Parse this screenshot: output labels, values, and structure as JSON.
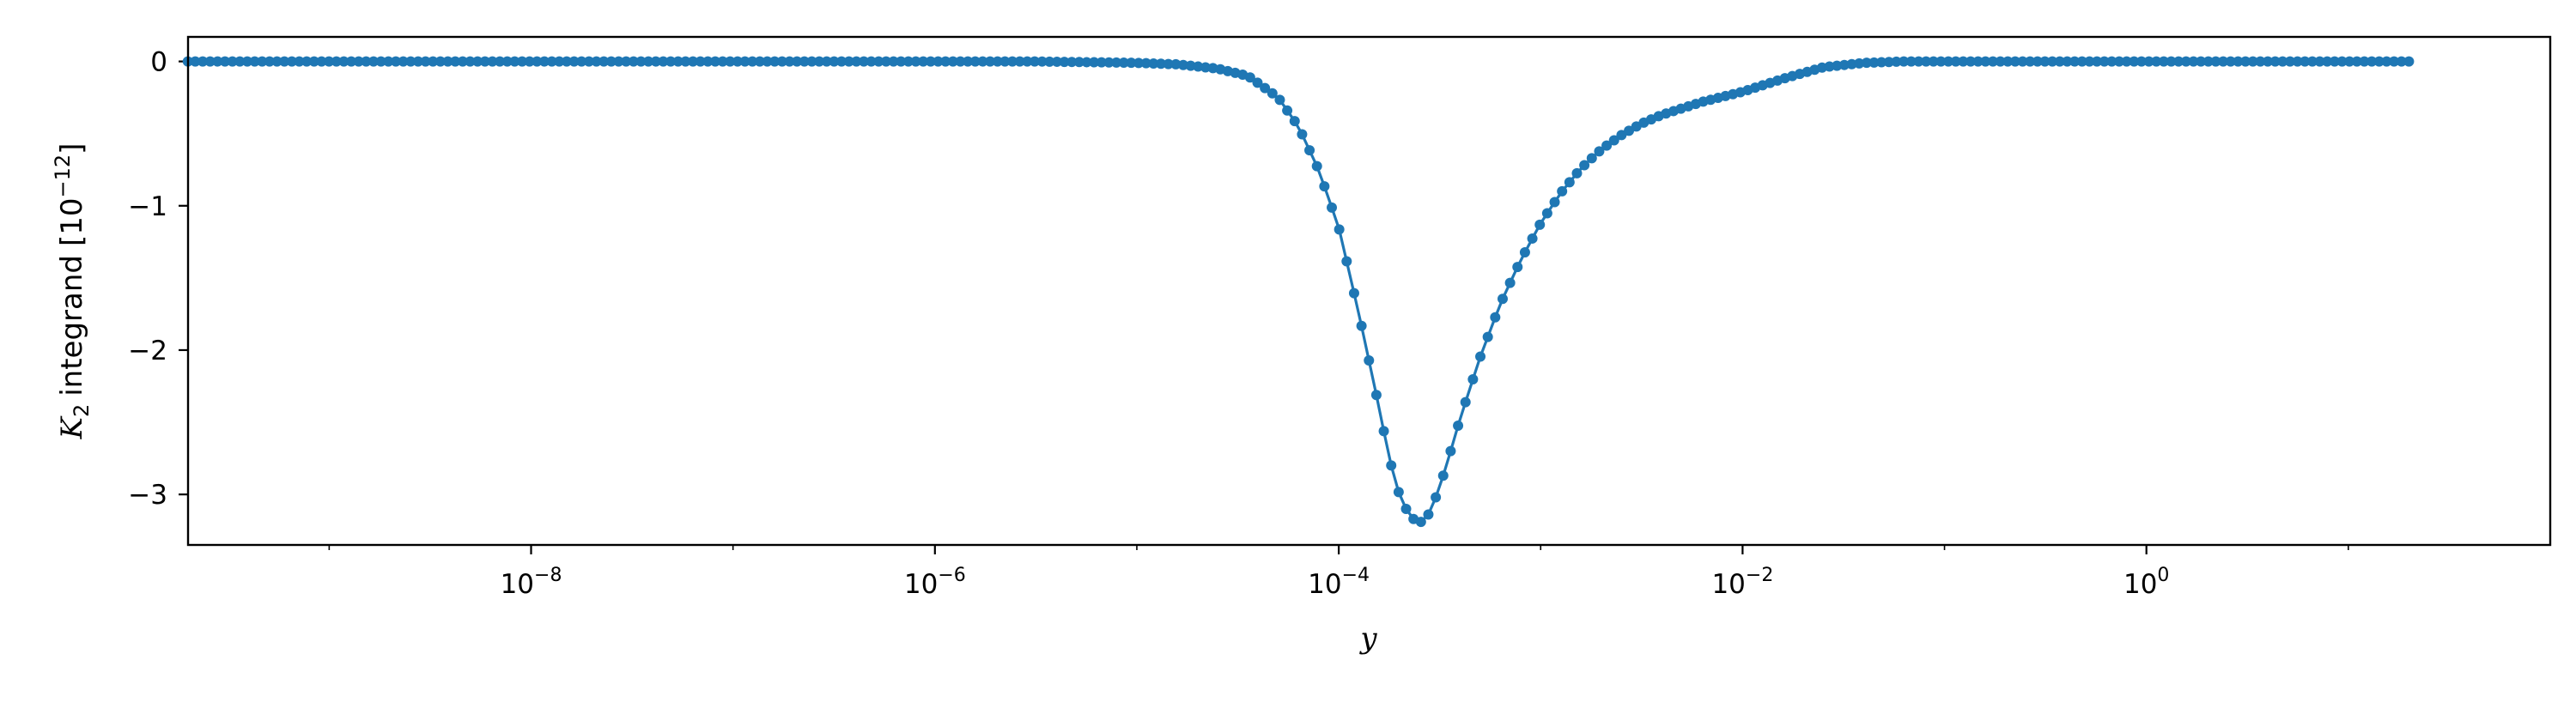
{
  "chart_data": {
    "type": "line",
    "xscale": "log",
    "xlabel": "y",
    "ylabel": {
      "variable": "K",
      "subscript": "2",
      "text": "integrand",
      "unit_base": "[10",
      "unit_exp": "−12",
      "unit_close": "]"
    },
    "xlim": [
      2e-10,
      100
    ],
    "ylim": [
      -3.35,
      0.17
    ],
    "grid": false,
    "legend": "none",
    "series_color": "#1f77b4",
    "x_ticks": [
      {
        "value": 1e-08,
        "base": "10",
        "exp": "−8"
      },
      {
        "value": 1e-06,
        "base": "10",
        "exp": "−6"
      },
      {
        "value": 0.0001,
        "base": "10",
        "exp": "−4"
      },
      {
        "value": 0.01,
        "base": "10",
        "exp": "−2"
      },
      {
        "value": 1,
        "base": "10",
        "exp": "0"
      }
    ],
    "y_ticks": [
      {
        "value": 0,
        "label": "0"
      },
      {
        "value": -1,
        "label": "−1"
      },
      {
        "value": -2,
        "label": "−2"
      },
      {
        "value": -3,
        "label": "−3"
      }
    ],
    "series": [
      {
        "x_log10_start": -9.7,
        "x_log10_end": 1.3,
        "point_count": 300,
        "x_log10": [
          -9.7,
          -7.0,
          -6.0,
          -5.5,
          -5.0,
          -4.8,
          -4.6,
          -4.45,
          -4.3,
          -4.2,
          -4.1,
          -4.0,
          -3.9,
          -3.8,
          -3.75,
          -3.7,
          -3.65,
          -3.6,
          -3.55,
          -3.5,
          -3.45,
          -3.4,
          -3.3,
          -3.2,
          -3.1,
          -3.0,
          -2.9,
          -2.8,
          -2.7,
          -2.6,
          -2.5,
          -2.4,
          -2.2,
          -2.0,
          -1.8,
          -1.6,
          -1.4,
          -1.2,
          -1.0,
          -0.5,
          0.0,
          0.5,
          1.0,
          1.3
        ],
        "y": [
          0.0,
          0.0,
          0.0,
          0.0,
          -0.01,
          -0.02,
          -0.05,
          -0.1,
          -0.25,
          -0.45,
          -0.75,
          -1.15,
          -1.75,
          -2.4,
          -2.75,
          -3.0,
          -3.15,
          -3.2,
          -3.13,
          -2.95,
          -2.72,
          -2.48,
          -2.05,
          -1.68,
          -1.38,
          -1.12,
          -0.91,
          -0.74,
          -0.61,
          -0.51,
          -0.43,
          -0.37,
          -0.28,
          -0.21,
          -0.12,
          -0.04,
          -0.01,
          0.0,
          0.0,
          0.0,
          0.0,
          0.0,
          0.0,
          0.0
        ]
      }
    ]
  }
}
